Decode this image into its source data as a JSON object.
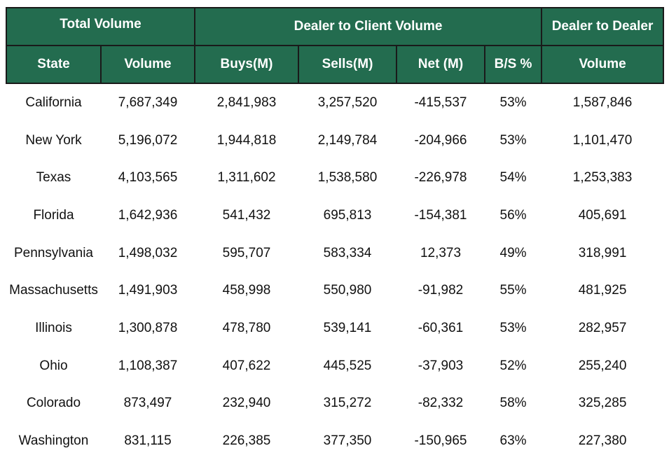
{
  "table": {
    "groups": [
      "Total Volume",
      "Dealer to Client Volume",
      "Dealer to Dealer"
    ],
    "columns": [
      "State",
      "Volume",
      "Buys(M)",
      "Sells(M)",
      "Net (M)",
      "B/S %",
      "Volume"
    ],
    "rows": [
      [
        "California",
        "7,687,349",
        "2,841,983",
        "3,257,520",
        "-415,537",
        "53%",
        "1,587,846"
      ],
      [
        "New York",
        "5,196,072",
        "1,944,818",
        "2,149,784",
        "-204,966",
        "53%",
        "1,101,470"
      ],
      [
        "Texas",
        "4,103,565",
        "1,311,602",
        "1,538,580",
        "-226,978",
        "54%",
        "1,253,383"
      ],
      [
        "Florida",
        "1,642,936",
        "541,432",
        "695,813",
        "-154,381",
        "56%",
        "405,691"
      ],
      [
        "Pennsylvania",
        "1,498,032",
        "595,707",
        "583,334",
        "12,373",
        "49%",
        "318,991"
      ],
      [
        "Massachusetts",
        "1,491,903",
        "458,998",
        "550,980",
        "-91,982",
        "55%",
        "481,925"
      ],
      [
        "Illinois",
        "1,300,878",
        "478,780",
        "539,141",
        "-60,361",
        "53%",
        "282,957"
      ],
      [
        "Ohio",
        "1,108,387",
        "407,622",
        "445,525",
        "-37,903",
        "52%",
        "255,240"
      ],
      [
        "Colorado",
        "873,497",
        "232,940",
        "315,272",
        "-82,332",
        "58%",
        "325,285"
      ],
      [
        "Washington",
        "831,115",
        "226,385",
        "377,350",
        "-150,965",
        "63%",
        "227,380"
      ]
    ]
  }
}
